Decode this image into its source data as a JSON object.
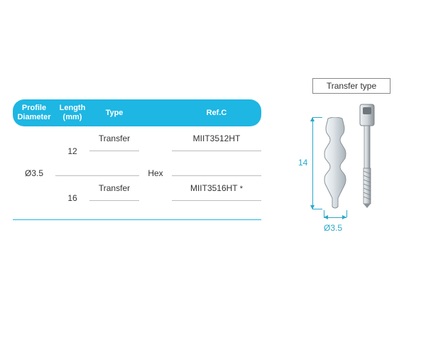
{
  "table": {
    "headers": {
      "diameter": "Profile\nDiameter",
      "length": "Length\n(mm)",
      "type": "Type",
      "hextype": "",
      "ref": "Ref.C"
    },
    "rows": [
      {
        "diameter": "Ø3.5",
        "length": "12",
        "type": "Transfer",
        "hex": "Hex",
        "ref": "MIIT3512HT",
        "star": ""
      },
      {
        "diameter": "",
        "length": "16",
        "type": "Transfer",
        "hex": "",
        "ref": "MIIT3516HT",
        "star": "*"
      }
    ],
    "header_bg": "#1eb6e3",
    "header_fg": "#ffffff",
    "cell_border": "#bdbdbd",
    "bottom_border": "#1eb6e3",
    "text_color": "#333333"
  },
  "diagram": {
    "label": "Transfer type",
    "height_value": "14",
    "diameter_value": "Ø3.5",
    "dim_color": "#2aa8c9",
    "body_fill_light": "#e8edf0",
    "body_fill_mid": "#b8c2c8",
    "body_fill_dark": "#9aa4aa",
    "screw_fill_light": "#d9dee1",
    "screw_fill_dark": "#8a9298"
  }
}
